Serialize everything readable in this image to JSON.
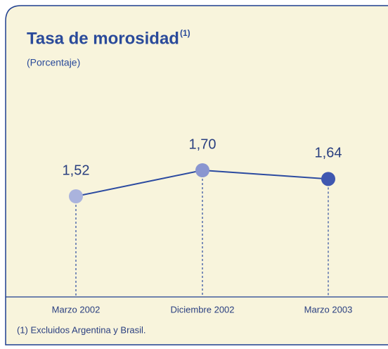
{
  "chart_data": {
    "type": "line",
    "title": "Tasa de morosidad",
    "title_superscript": "(1)",
    "subtitle": "(Porcentaje)",
    "footnote": "(1)  Excluidos Argentina y Brasil.",
    "categories": [
      "Marzo 2002",
      "Diciembre 2002",
      "Marzo 2003"
    ],
    "series": [
      {
        "name": "Tasa de morosidad",
        "color": "#2b4aa0",
        "point_colors": [
          "#aab3dd",
          "#8a96d0",
          "#3f57b0"
        ],
        "values": [
          1.52,
          1.7,
          1.64
        ],
        "value_labels": [
          "1,52",
          "1,70",
          "1,64"
        ]
      }
    ]
  }
}
